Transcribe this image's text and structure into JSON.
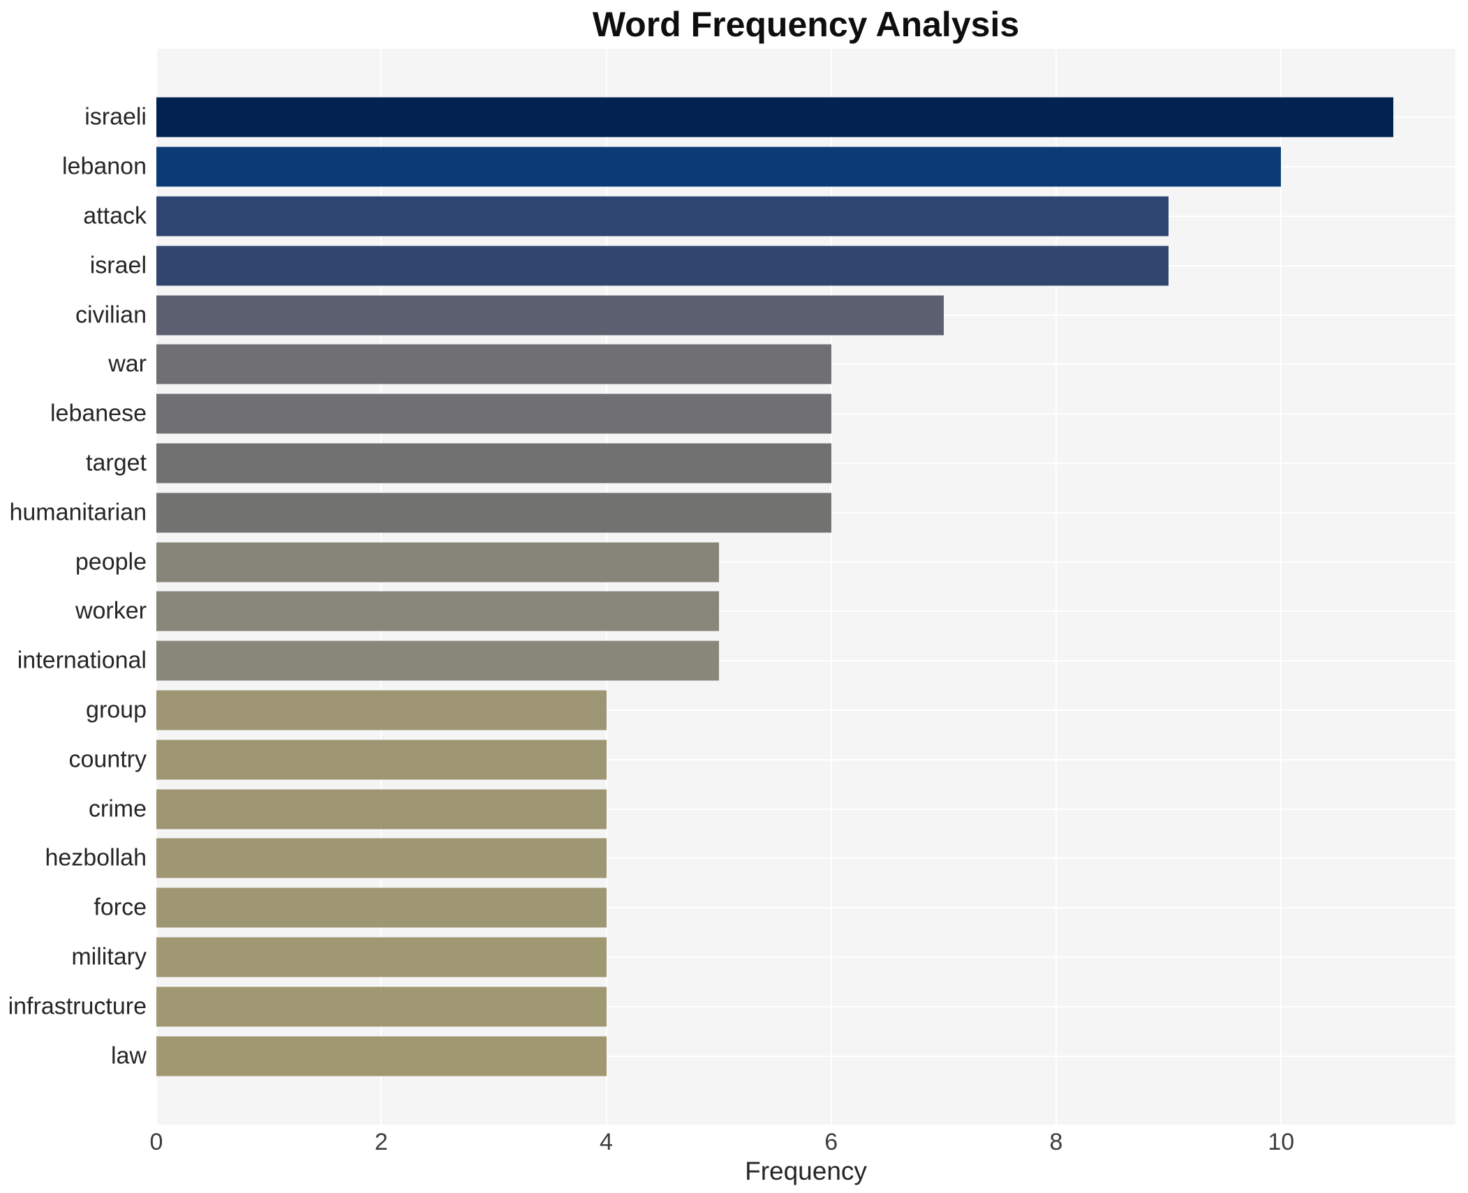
{
  "title": "Word Frequency Analysis",
  "xlabel": "Frequency",
  "chart_data": {
    "type": "bar",
    "orientation": "horizontal",
    "title": "Word Frequency Analysis",
    "xlabel": "Frequency",
    "ylabel": "",
    "categories": [
      "israeli",
      "lebanon",
      "attack",
      "israel",
      "civilian",
      "war",
      "lebanese",
      "target",
      "humanitarian",
      "people",
      "worker",
      "international",
      "group",
      "country",
      "crime",
      "hezbollah",
      "force",
      "military",
      "infrastructure",
      "law"
    ],
    "values": [
      11,
      10,
      9,
      9,
      7,
      6,
      6,
      6,
      6,
      5,
      5,
      5,
      4,
      4,
      4,
      4,
      4,
      4,
      4,
      4
    ],
    "bar_colors": [
      "#02234f",
      "#0b3a76",
      "#2f4571",
      "#31466f",
      "#5d6071",
      "#707072",
      "#707072",
      "#717171",
      "#727270",
      "#868579",
      "#87867a",
      "#88877a",
      "#9d9573",
      "#9e9673",
      "#9e9673",
      "#9f9673",
      "#9f9773",
      "#a09773",
      "#a09872",
      "#a19872"
    ],
    "xlim": [
      0,
      11.55
    ],
    "x_tick_values": [
      0,
      2,
      4,
      6,
      8,
      10
    ],
    "x_tick_labels": [
      "0",
      "2",
      "4",
      "6",
      "8",
      "10"
    ],
    "grid": true,
    "legend": false,
    "plot_bg_color": "#f5f5f6",
    "grid_color": "#ffffff",
    "page_bg_color": "#ffffff",
    "title_color": "#0e0e0e",
    "tick_label_color": "#3d3d3d",
    "category_label_color": "#262626"
  }
}
